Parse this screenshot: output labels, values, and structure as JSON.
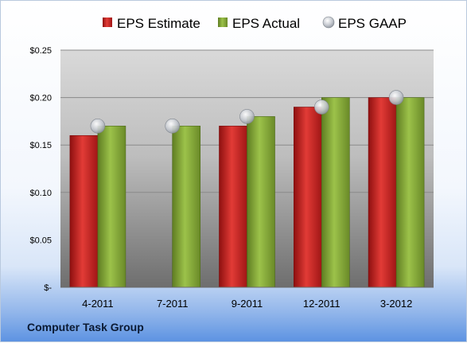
{
  "company": "Computer Task Group",
  "chart_data": {
    "type": "bar",
    "categories": [
      "4-2011",
      "7-2011",
      "9-2011",
      "12-2011",
      "3-2012"
    ],
    "series": [
      {
        "name": "EPS Estimate",
        "color": "#c0201f",
        "values": [
          0.16,
          null,
          0.17,
          0.19,
          0.2
        ]
      },
      {
        "name": "EPS Actual",
        "color": "#86a83a",
        "values": [
          0.17,
          0.17,
          0.18,
          0.2,
          0.2
        ]
      },
      {
        "name": "EPS GAAP",
        "color": "#c8ccd4",
        "type": "scatter",
        "values": [
          0.17,
          0.17,
          0.18,
          0.19,
          0.2
        ]
      }
    ],
    "y_ticks": [
      {
        "value": 0,
        "label": "$-"
      },
      {
        "value": 0.05,
        "label": "$0.05"
      },
      {
        "value": 0.1,
        "label": "$0.10"
      },
      {
        "value": 0.15,
        "label": "$0.15"
      },
      {
        "value": 0.2,
        "label": "$0.20"
      },
      {
        "value": 0.25,
        "label": "$0.25"
      }
    ],
    "ylim": [
      0,
      0.25
    ],
    "grid": true,
    "legend_position": "top"
  }
}
